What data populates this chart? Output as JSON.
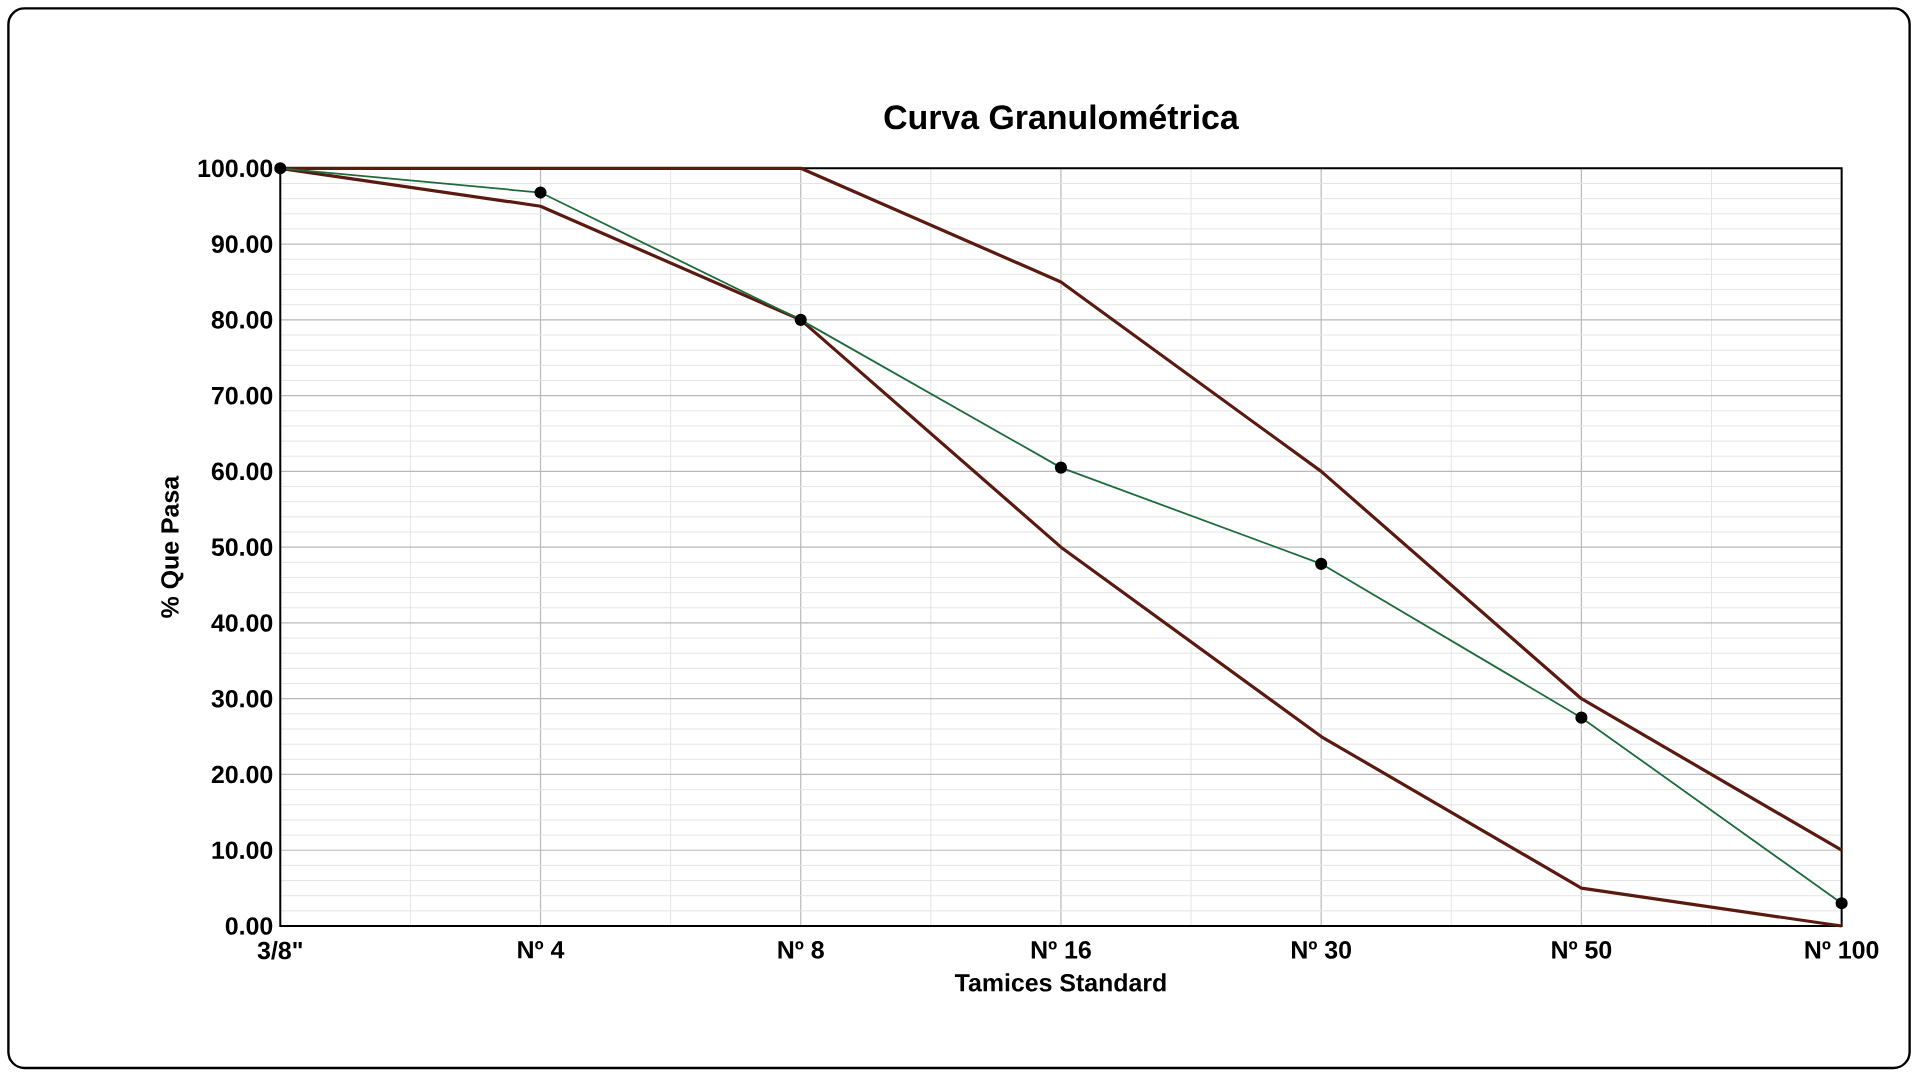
{
  "chart_data": {
    "type": "line",
    "title": "Curva Granulométrica",
    "xlabel": "Tamices Standard",
    "ylabel": "% Que Pasa",
    "categories": [
      "3/8\"",
      "Nº 4",
      "Nº 8",
      "Nº 16",
      "Nº 30",
      "Nº 50",
      "Nº 100"
    ],
    "series": [
      {
        "color": "#5a1a10",
        "values": [
          100,
          100,
          100,
          85,
          60,
          30,
          10
        ],
        "marker": "none"
      },
      {
        "color": "#5a1a10",
        "values": [
          100,
          95,
          80,
          50,
          25,
          5,
          0
        ],
        "marker": "none"
      },
      {
        "color": "#1e6b3a",
        "values": [
          100,
          96.8,
          80,
          60.5,
          47.8,
          27.5,
          3
        ],
        "marker": "circle"
      }
    ],
    "ylim": [
      0,
      100
    ],
    "yticks": [
      {
        "value": 0,
        "label": "0.00"
      },
      {
        "value": 10,
        "label": "10.00"
      },
      {
        "value": 20,
        "label": "20.00"
      },
      {
        "value": 30,
        "label": "30.00"
      },
      {
        "value": 40,
        "label": "40.00"
      },
      {
        "value": 50,
        "label": "50.00"
      },
      {
        "value": 60,
        "label": "60.00"
      },
      {
        "value": 70,
        "label": "70.00"
      },
      {
        "value": 80,
        "label": "80.00"
      },
      {
        "value": 90,
        "label": "90.00"
      },
      {
        "value": 100,
        "label": "100.00"
      }
    ],
    "grid": true,
    "line_style": "solid"
  }
}
